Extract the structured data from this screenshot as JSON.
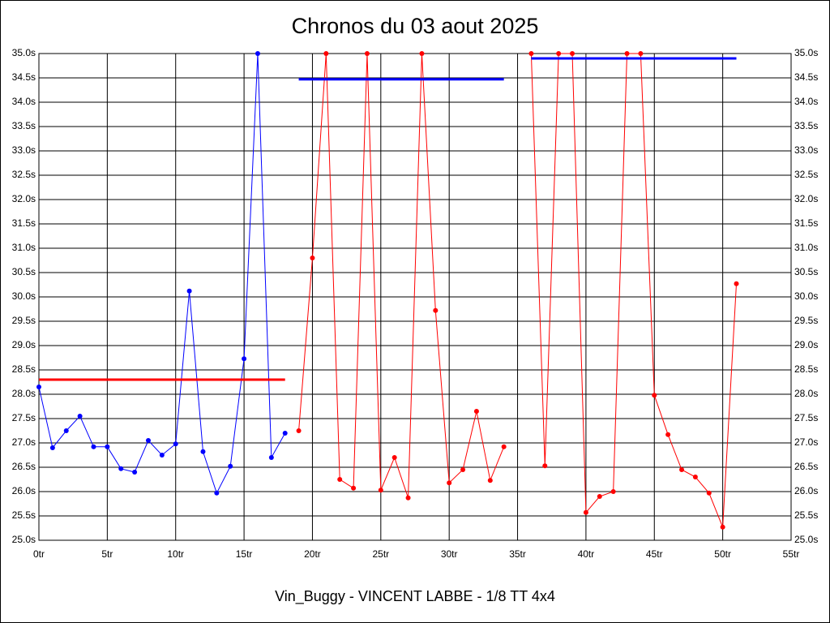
{
  "chart_data": {
    "type": "line",
    "title": "Chronos du 03 aout 2025",
    "x_label": "Vin_Buggy - VINCENT LABBE - 1/8 TT 4x4",
    "xlim": [
      0,
      55
    ],
    "ylim": [
      25.0,
      35.0
    ],
    "grid": true,
    "xticks": [
      {
        "value": 0,
        "label": "0tr"
      },
      {
        "value": 5,
        "label": "5tr"
      },
      {
        "value": 10,
        "label": "10tr"
      },
      {
        "value": 15,
        "label": "15tr"
      },
      {
        "value": 20,
        "label": "20tr"
      },
      {
        "value": 25,
        "label": "25tr"
      },
      {
        "value": 30,
        "label": "30tr"
      },
      {
        "value": 35,
        "label": "35tr"
      },
      {
        "value": 40,
        "label": "40tr"
      },
      {
        "value": 45,
        "label": "45tr"
      },
      {
        "value": 50,
        "label": "50tr"
      },
      {
        "value": 55,
        "label": "55tr"
      }
    ],
    "yticks": [
      {
        "value": 25.0,
        "label": "25.0s"
      },
      {
        "value": 25.5,
        "label": "25.5s"
      },
      {
        "value": 26.0,
        "label": "26.0s"
      },
      {
        "value": 26.5,
        "label": "26.5s"
      },
      {
        "value": 27.0,
        "label": "27.0s"
      },
      {
        "value": 27.5,
        "label": "27.5s"
      },
      {
        "value": 28.0,
        "label": "28.0s"
      },
      {
        "value": 28.5,
        "label": "28.5s"
      },
      {
        "value": 29.0,
        "label": "29.0s"
      },
      {
        "value": 29.5,
        "label": "29.5s"
      },
      {
        "value": 30.0,
        "label": "30.0s"
      },
      {
        "value": 30.5,
        "label": "30.5s"
      },
      {
        "value": 31.0,
        "label": "31.0s"
      },
      {
        "value": 31.5,
        "label": "31.5s"
      },
      {
        "value": 32.0,
        "label": "32.0s"
      },
      {
        "value": 32.5,
        "label": "32.5s"
      },
      {
        "value": 33.0,
        "label": "33.0s"
      },
      {
        "value": 33.5,
        "label": "33.5s"
      },
      {
        "value": 34.0,
        "label": "34.0s"
      },
      {
        "value": 34.5,
        "label": "34.5s"
      },
      {
        "value": 35.0,
        "label": "35.0s"
      }
    ],
    "series": [
      {
        "color": "#0000ff",
        "x": [
          0,
          1,
          2,
          3,
          4,
          5,
          6,
          7,
          8,
          9,
          10,
          11,
          12,
          13,
          14,
          15,
          16,
          17,
          18
        ],
        "values": [
          28.15,
          26.9,
          27.25,
          27.55,
          26.92,
          26.92,
          26.47,
          26.4,
          27.05,
          26.75,
          26.98,
          30.12,
          26.82,
          25.97,
          26.52,
          28.73,
          35.0,
          26.7,
          27.2
        ]
      },
      {
        "color": "#ff0000",
        "x": [
          19,
          20,
          21,
          22,
          23,
          24,
          25,
          26,
          27,
          28,
          29,
          30,
          31,
          32,
          33,
          34
        ],
        "values": [
          27.25,
          30.8,
          35.0,
          26.25,
          26.07,
          35.0,
          26.03,
          26.7,
          25.87,
          35.0,
          29.72,
          26.18,
          26.45,
          27.65,
          26.23,
          26.92
        ]
      },
      {
        "color": "#ff0000",
        "x": [
          36,
          37,
          38,
          39,
          40,
          41,
          42,
          43,
          44,
          45,
          46,
          47,
          48,
          49,
          50,
          51
        ],
        "values": [
          35.0,
          26.53,
          35.0,
          35.0,
          25.57,
          25.9,
          26.0,
          35.0,
          35.0,
          27.98,
          27.17,
          26.45,
          26.3,
          25.97,
          25.27,
          30.27
        ]
      }
    ],
    "mean_lines": [
      {
        "color": "#ff0000",
        "x": [
          0,
          18
        ],
        "values": [
          28.3,
          28.3
        ]
      },
      {
        "color": "#0000ff",
        "x": [
          19,
          34
        ],
        "values": [
          34.47,
          34.47
        ]
      },
      {
        "color": "#0000ff",
        "x": [
          36,
          51
        ],
        "values": [
          34.9,
          34.9
        ]
      }
    ]
  }
}
